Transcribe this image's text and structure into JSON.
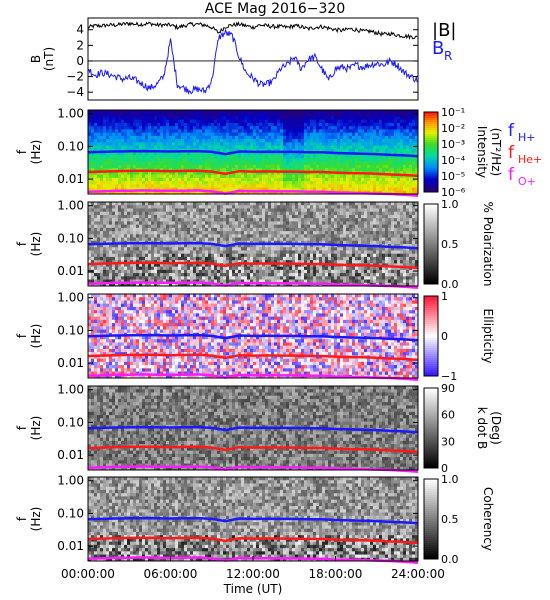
{
  "title": "ACE Mag 2016−320",
  "x_axis": {
    "label": "Time (UT)",
    "ticks": [
      "00:00:00",
      "06:00:00",
      "12:00:00",
      "18:00:00",
      "24:00:00"
    ],
    "range_hours": [
      0,
      24
    ]
  },
  "colors": {
    "B_total": "#000000",
    "B_R": "#1a1aff",
    "f_H": "#1a1aff",
    "f_He": "#ff1a1a",
    "f_O": "#ff1aff"
  },
  "chart_data": [
    {
      "type": "line",
      "panel": "field",
      "ylabel": "B\n(nT)",
      "ylim": [
        -5,
        5.5
      ],
      "yticks": [
        "4",
        "2",
        "0",
        "−2",
        "−4"
      ],
      "ytick_values": [
        4,
        2,
        0,
        -2,
        -4
      ],
      "legend": [
        "|B|",
        "B",
        "R"
      ],
      "legend_placement": "right",
      "series": [
        {
          "name": "|B|",
          "x": [
            0,
            0.5,
            1,
            1.5,
            2,
            2.5,
            3,
            3.5,
            4,
            4.5,
            5,
            5.5,
            6,
            6.5,
            7,
            7.5,
            8,
            8.5,
            9,
            9.5,
            10,
            10.5,
            11,
            11.5,
            12,
            12.5,
            13,
            13.5,
            14,
            14.5,
            15,
            15.5,
            16,
            16.5,
            17,
            17.5,
            18,
            18.5,
            19,
            19.5,
            20,
            20.5,
            21,
            21.5,
            22,
            22.5,
            23,
            23.5,
            24
          ],
          "values": [
            4.3,
            4.5,
            4.5,
            4.6,
            4.6,
            4.7,
            4.8,
            4.7,
            4.7,
            4.8,
            4.6,
            4.6,
            4.6,
            4.3,
            4.5,
            4.7,
            4.7,
            4.6,
            4.3,
            3.6,
            4.4,
            4.6,
            4.7,
            4.5,
            4.3,
            4.6,
            4.5,
            4.4,
            4.4,
            4.3,
            4.5,
            4.4,
            4.1,
            4.3,
            4.4,
            4.2,
            4.0,
            3.9,
            4.1,
            4.0,
            3.8,
            3.8,
            3.6,
            3.4,
            3.5,
            3.3,
            3.2,
            3.1,
            3.0
          ]
        },
        {
          "name": "B",
          "x": [
            0,
            0.5,
            1,
            1.5,
            2,
            2.5,
            3,
            3.5,
            4,
            4.5,
            5,
            5.5,
            6,
            6.5,
            7,
            7.5,
            8,
            8.5,
            9,
            9.5,
            10,
            10.5,
            11,
            11.5,
            12,
            12.5,
            13,
            13.5,
            14,
            14.5,
            15,
            15.5,
            16,
            16.5,
            17,
            17.5,
            18,
            18.5,
            19,
            19.5,
            20,
            20.5,
            21,
            21.5,
            22,
            22.5,
            23,
            23.5,
            24
          ],
          "values": [
            -1.0,
            -1.8,
            -1.5,
            -1.7,
            -2.0,
            -2.3,
            -2.2,
            -2.5,
            -3.0,
            -3.5,
            -3.0,
            -2.0,
            2.6,
            -3.0,
            -3.5,
            -3.8,
            -3.6,
            -3.9,
            -2.5,
            3.0,
            3.6,
            3.2,
            0.5,
            -1.5,
            -2.2,
            -3.0,
            -3.0,
            -2.5,
            -1.0,
            -0.5,
            0.5,
            -1.0,
            0.2,
            0.5,
            -1.0,
            -2.5,
            -1.0,
            -0.8,
            -1.0,
            -0.5,
            -0.8,
            -0.5,
            -0.3,
            -0.5,
            0.0,
            -0.5,
            -1.5,
            -2.0,
            -2.5
          ]
        }
      ]
    },
    {
      "type": "heatmap",
      "panel": "intensity",
      "ylabel": "f\n(Hz)",
      "yticks": [
        "1.00",
        "0.10",
        "0.01"
      ],
      "ylim_hz": [
        0.0035,
        1.3
      ],
      "colorbar": {
        "label": "Intensity\n(nT²/Hz)",
        "ticks": [
          "10⁻¹",
          "10⁻²",
          "10⁻³",
          "10⁻⁴",
          "10⁻⁵",
          "10⁻⁶"
        ],
        "scale": "rainbow-log"
      },
      "legend": [
        "f",
        "H+",
        "f",
        "He+",
        "f",
        "O+"
      ]
    },
    {
      "type": "heatmap",
      "panel": "polarization",
      "ylabel": "f\n(Hz)",
      "yticks": [
        "1.00",
        "0.10",
        "0.01"
      ],
      "colorbar": {
        "label": "% Polarization",
        "ticks": [
          "1.0",
          "0.5",
          "0.0"
        ],
        "scale": "grayscale"
      }
    },
    {
      "type": "heatmap",
      "panel": "ellipticity",
      "ylabel": "f\n(Hz)",
      "yticks": [
        "1.00",
        "0.10",
        "0.01"
      ],
      "colorbar": {
        "label": "Ellipticity",
        "ticks": [
          "1",
          "0",
          "−1"
        ],
        "scale": "blue-white-red"
      }
    },
    {
      "type": "heatmap",
      "panel": "k-dot-b",
      "ylabel": "f\n(Hz)",
      "yticks": [
        "1.00",
        "0.10",
        "0.01"
      ],
      "colorbar": {
        "label": "k dot B\n(Deg)",
        "ticks": [
          "90",
          "60",
          "30",
          "0"
        ],
        "scale": "grayscale"
      }
    },
    {
      "type": "heatmap",
      "panel": "coherency",
      "ylabel": "f\n(Hz)",
      "yticks": [
        "1.00",
        "0.10",
        "0.01"
      ],
      "colorbar": {
        "label": "Coherency",
        "ticks": [
          "1.0",
          "0.5",
          "0.0"
        ],
        "scale": "grayscale"
      }
    }
  ],
  "gyrofrequency_lines_hz": {
    "x": [
      0,
      1,
      2,
      3,
      4,
      5,
      6,
      7,
      8,
      9,
      10,
      11,
      12,
      13,
      14,
      15,
      16,
      17,
      18,
      19,
      20,
      21,
      22,
      23,
      24
    ],
    "f_H": [
      0.066,
      0.068,
      0.07,
      0.071,
      0.072,
      0.071,
      0.07,
      0.071,
      0.072,
      0.068,
      0.058,
      0.07,
      0.068,
      0.069,
      0.068,
      0.068,
      0.066,
      0.066,
      0.063,
      0.061,
      0.06,
      0.058,
      0.055,
      0.053,
      0.05
    ],
    "f_He": [
      0.0165,
      0.017,
      0.0175,
      0.0178,
      0.018,
      0.0178,
      0.0175,
      0.0178,
      0.018,
      0.017,
      0.0145,
      0.0175,
      0.017,
      0.0172,
      0.017,
      0.017,
      0.0165,
      0.0165,
      0.0158,
      0.0153,
      0.015,
      0.0145,
      0.0138,
      0.0133,
      0.0125
    ],
    "f_O": [
      0.0041,
      0.0042,
      0.0044,
      0.0044,
      0.0045,
      0.0044,
      0.0044,
      0.0044,
      0.0045,
      0.0042,
      0.0036,
      0.0044,
      0.0042,
      0.0043,
      0.0042,
      0.0042,
      0.0041,
      0.0041,
      0.0039,
      0.0038,
      0.0037,
      0.0036,
      0.0035,
      0.0033,
      0.0031
    ]
  }
}
